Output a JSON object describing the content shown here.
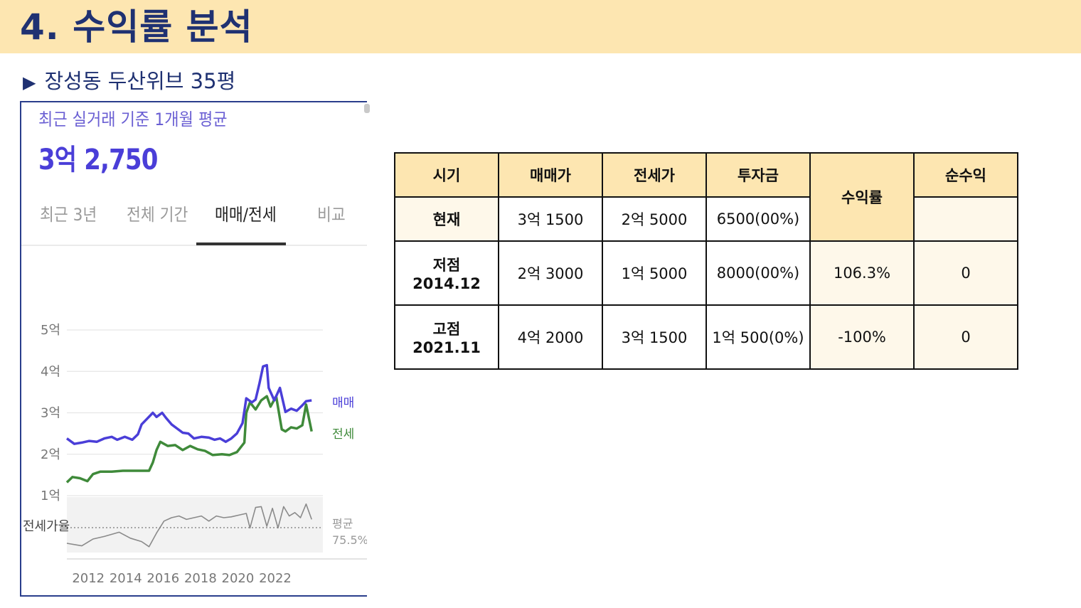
{
  "slide": {
    "title": "4. 수익률 분석",
    "subtitle_marker": "▶",
    "subtitle": "장성동 두산위브 35평",
    "colors": {
      "banner": "#fde6b1",
      "title": "#1f3172",
      "table_header": "#fde6b1",
      "table_pale": "#fef8ea"
    }
  },
  "widget": {
    "caption": "최근 실거래 기준 1개월 평균",
    "price": "3억 2,750",
    "tabs": [
      {
        "label": "최근 3년",
        "active": false
      },
      {
        "label": "전체 기간",
        "active": false
      },
      {
        "label": "매매/전세",
        "active": true
      },
      {
        "label": "비교",
        "active": false
      }
    ]
  },
  "chart_data": {
    "type": "line",
    "x_ticks": [
      "2012",
      "2014",
      "2016",
      "2018",
      "2020",
      "2022"
    ],
    "y_ticks": [
      "5억",
      "4억",
      "3억",
      "2억",
      "1억"
    ],
    "ylim": [
      1,
      5
    ],
    "x_range": [
      2011.2,
      2024.9
    ],
    "grid": true,
    "series": [
      {
        "name": "매매",
        "color": "#4a3ed8",
        "points": [
          [
            2011.2,
            2.38
          ],
          [
            2011.6,
            2.25
          ],
          [
            2012.0,
            2.28
          ],
          [
            2012.4,
            2.32
          ],
          [
            2012.8,
            2.3
          ],
          [
            2013.2,
            2.38
          ],
          [
            2013.6,
            2.42
          ],
          [
            2013.9,
            2.35
          ],
          [
            2014.3,
            2.42
          ],
          [
            2014.7,
            2.35
          ],
          [
            2015.0,
            2.48
          ],
          [
            2015.2,
            2.72
          ],
          [
            2015.5,
            2.86
          ],
          [
            2015.8,
            3.0
          ],
          [
            2016.0,
            2.9
          ],
          [
            2016.3,
            3.0
          ],
          [
            2016.5,
            2.88
          ],
          [
            2016.8,
            2.72
          ],
          [
            2017.1,
            2.62
          ],
          [
            2017.4,
            2.52
          ],
          [
            2017.7,
            2.5
          ],
          [
            2018.0,
            2.38
          ],
          [
            2018.4,
            2.42
          ],
          [
            2018.8,
            2.4
          ],
          [
            2019.1,
            2.35
          ],
          [
            2019.4,
            2.38
          ],
          [
            2019.7,
            2.3
          ],
          [
            2020.0,
            2.38
          ],
          [
            2020.3,
            2.5
          ],
          [
            2020.6,
            2.75
          ],
          [
            2020.8,
            3.35
          ],
          [
            2021.1,
            3.25
          ],
          [
            2021.3,
            3.32
          ],
          [
            2021.5,
            3.7
          ],
          [
            2021.7,
            4.12
          ],
          [
            2021.9,
            4.15
          ],
          [
            2022.0,
            3.6
          ],
          [
            2022.3,
            3.3
          ],
          [
            2022.6,
            3.6
          ],
          [
            2022.9,
            3.02
          ],
          [
            2023.2,
            3.1
          ],
          [
            2023.5,
            3.05
          ],
          [
            2023.8,
            3.18
          ],
          [
            2024.0,
            3.28
          ],
          [
            2024.3,
            3.3
          ]
        ]
      },
      {
        "name": "전세",
        "color": "#3f8a3a",
        "points": [
          [
            2011.2,
            1.32
          ],
          [
            2011.5,
            1.45
          ],
          [
            2011.9,
            1.42
          ],
          [
            2012.3,
            1.35
          ],
          [
            2012.6,
            1.52
          ],
          [
            2013.0,
            1.58
          ],
          [
            2013.6,
            1.58
          ],
          [
            2014.2,
            1.6
          ],
          [
            2014.6,
            1.6
          ],
          [
            2015.0,
            1.6
          ],
          [
            2015.3,
            1.6
          ],
          [
            2015.6,
            1.6
          ],
          [
            2015.8,
            1.8
          ],
          [
            2016.0,
            2.1
          ],
          [
            2016.2,
            2.3
          ],
          [
            2016.6,
            2.2
          ],
          [
            2017.0,
            2.22
          ],
          [
            2017.4,
            2.1
          ],
          [
            2017.8,
            2.2
          ],
          [
            2018.2,
            2.12
          ],
          [
            2018.6,
            2.08
          ],
          [
            2019.0,
            1.98
          ],
          [
            2019.5,
            2.0
          ],
          [
            2019.9,
            1.98
          ],
          [
            2020.3,
            2.05
          ],
          [
            2020.7,
            2.28
          ],
          [
            2020.8,
            3.0
          ],
          [
            2021.0,
            3.25
          ],
          [
            2021.3,
            3.08
          ],
          [
            2021.6,
            3.3
          ],
          [
            2021.9,
            3.4
          ],
          [
            2022.1,
            3.15
          ],
          [
            2022.4,
            3.4
          ],
          [
            2022.7,
            2.6
          ],
          [
            2022.9,
            2.55
          ],
          [
            2023.2,
            2.65
          ],
          [
            2023.5,
            2.62
          ],
          [
            2023.8,
            2.7
          ],
          [
            2024.0,
            3.2
          ],
          [
            2024.3,
            2.55
          ]
        ]
      }
    ],
    "ratio": {
      "label": "전세가율",
      "avg_label": "평균",
      "avg_value": "75.5%",
      "color": "#8a8a8a",
      "points": [
        [
          2011.2,
          50
        ],
        [
          2012.0,
          47
        ],
        [
          2012.6,
          55
        ],
        [
          2013.2,
          58
        ],
        [
          2014.0,
          63
        ],
        [
          2014.6,
          56
        ],
        [
          2015.2,
          52
        ],
        [
          2015.6,
          46
        ],
        [
          2016.0,
          62
        ],
        [
          2016.4,
          76
        ],
        [
          2016.8,
          80
        ],
        [
          2017.2,
          82
        ],
        [
          2017.6,
          78
        ],
        [
          2018.0,
          80
        ],
        [
          2018.4,
          82
        ],
        [
          2018.8,
          76
        ],
        [
          2019.2,
          82
        ],
        [
          2019.6,
          80
        ],
        [
          2020.0,
          81
        ],
        [
          2020.4,
          83
        ],
        [
          2020.8,
          85
        ],
        [
          2021.0,
          68
        ],
        [
          2021.3,
          92
        ],
        [
          2021.6,
          93
        ],
        [
          2021.9,
          70
        ],
        [
          2022.2,
          91
        ],
        [
          2022.5,
          68
        ],
        [
          2022.8,
          93
        ],
        [
          2023.1,
          82
        ],
        [
          2023.4,
          86
        ],
        [
          2023.7,
          80
        ],
        [
          2024.0,
          96
        ],
        [
          2024.3,
          78
        ]
      ]
    }
  },
  "table": {
    "headers": [
      "시기",
      "매매가",
      "전세가",
      "투자금",
      "수익률",
      "순수익"
    ],
    "rows": [
      {
        "period": "현재",
        "period_date": "",
        "sale": "3억 1500",
        "jeonse": "2억 5000",
        "investment": "6500(00%)",
        "return": "",
        "net": ""
      },
      {
        "period": "저점",
        "period_date": "2014.12",
        "sale": "2억 3000",
        "jeonse": "1억 5000",
        "investment": "8000(00%)",
        "return": "106.3%",
        "net": "0"
      },
      {
        "period": "고점",
        "period_date": "2021.11",
        "sale": "4억 2000",
        "jeonse": "3억 1500",
        "investment": "1억 500(0%)",
        "return": "-100%",
        "net": "0"
      }
    ]
  }
}
